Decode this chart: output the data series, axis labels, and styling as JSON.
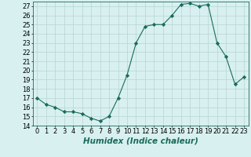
{
  "x": [
    0,
    1,
    2,
    3,
    4,
    5,
    6,
    7,
    8,
    9,
    10,
    11,
    12,
    13,
    14,
    15,
    16,
    17,
    18,
    19,
    20,
    21,
    22,
    23
  ],
  "y": [
    17,
    16.3,
    16,
    15.5,
    15.5,
    15.3,
    14.8,
    14.5,
    15,
    17,
    19.5,
    23,
    24.8,
    25,
    25,
    26,
    27.2,
    27.3,
    27,
    27.2,
    23,
    21.5,
    18.5,
    19.3
  ],
  "line_color": "#1a6b5a",
  "marker": "D",
  "marker_size": 2.2,
  "bg_color": "#d8f0f0",
  "grid_color": "#b8d4d4",
  "xlabel": "Humidex (Indice chaleur)",
  "xlim": [
    -0.5,
    23.5
  ],
  "ylim": [
    14,
    27.5
  ],
  "yticks": [
    14,
    15,
    16,
    17,
    18,
    19,
    20,
    21,
    22,
    23,
    24,
    25,
    26,
    27
  ],
  "xticks": [
    0,
    1,
    2,
    3,
    4,
    5,
    6,
    7,
    8,
    9,
    10,
    11,
    12,
    13,
    14,
    15,
    16,
    17,
    18,
    19,
    20,
    21,
    22,
    23
  ],
  "tick_fontsize": 6.0,
  "label_fontsize": 7.5
}
